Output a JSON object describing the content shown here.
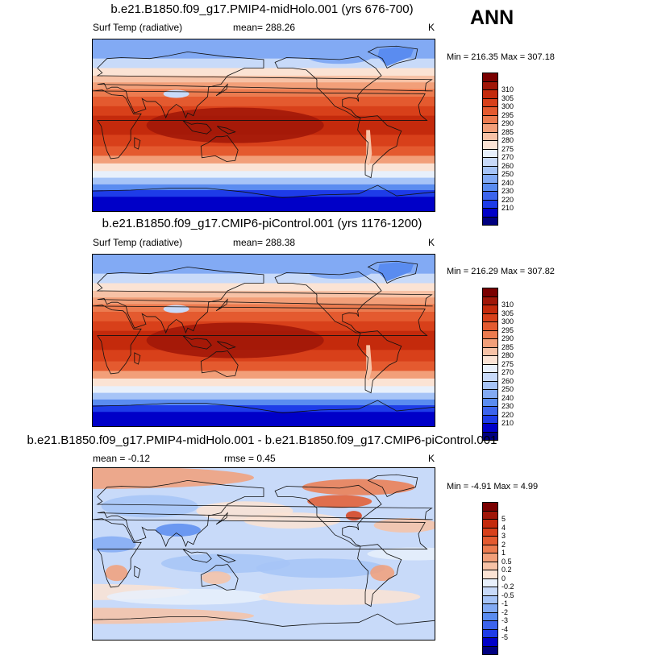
{
  "season": "ANN",
  "panels": [
    {
      "title": "b.e21.B1850.f09_g17.PMIP4-midHolo.001 (yrs 676-700)",
      "left_label": "Surf Temp (radiative)",
      "center_label": "mean= 288.26",
      "units": "K",
      "minmax": "Min = 216.35 Max = 307.18",
      "type": "abs",
      "colors": [
        "#000080",
        "#0000c8",
        "#1e3ce8",
        "#3c64ec",
        "#5a8cf0",
        "#82aaf4",
        "#a6c4f7",
        "#c8daf9",
        "#e8f0fb",
        "#fbe3d4",
        "#f7c2a6",
        "#f29f79",
        "#ec7b4f",
        "#e45a2f",
        "#d8401a",
        "#c42a0c",
        "#a01608",
        "#7a0000"
      ],
      "labels": [
        "310",
        "305",
        "300",
        "295",
        "290",
        "285",
        "280",
        "275",
        "270",
        "260",
        "250",
        "240",
        "230",
        "220",
        "210"
      ]
    },
    {
      "title": "b.e21.B1850.f09_g17.CMIP6-piControl.001 (yrs 1176-1200)",
      "left_label": "Surf Temp (radiative)",
      "center_label": "mean= 288.38",
      "units": "K",
      "minmax": "Min = 216.29 Max = 307.82",
      "type": "abs",
      "colors": [
        "#000080",
        "#0000c8",
        "#1e3ce8",
        "#3c64ec",
        "#5a8cf0",
        "#82aaf4",
        "#a6c4f7",
        "#c8daf9",
        "#e8f0fb",
        "#fbe3d4",
        "#f7c2a6",
        "#f29f79",
        "#ec7b4f",
        "#e45a2f",
        "#d8401a",
        "#c42a0c",
        "#a01608",
        "#7a0000"
      ],
      "labels": [
        "310",
        "305",
        "300",
        "295",
        "290",
        "285",
        "280",
        "275",
        "270",
        "260",
        "250",
        "240",
        "230",
        "220",
        "210"
      ]
    },
    {
      "title": "b.e21.B1850.f09_g17.PMIP4-midHolo.001 - b.e21.B1850.f09_g17.CMIP6-piControl.001",
      "left_label": "mean =  -0.12",
      "center_label": "rmse =  0.45",
      "units": "K",
      "minmax": "Min =  -4.91 Max =  4.99",
      "type": "diff",
      "colors": [
        "#000080",
        "#0000c8",
        "#1e3ce8",
        "#3c64ec",
        "#5a8cf0",
        "#82aaf4",
        "#a6c4f7",
        "#c8daf9",
        "#e8f0fb",
        "#fbe3d4",
        "#f7c2a6",
        "#f29f79",
        "#ec7b4f",
        "#e45a2f",
        "#d8401a",
        "#c42a0c",
        "#a01608",
        "#7a0000"
      ],
      "labels": [
        "5",
        "4",
        "3",
        "2",
        "1",
        "0.5",
        "0.2",
        "0",
        "-0.2",
        "-0.5",
        "-1",
        "-2",
        "-3",
        "-4",
        "-5"
      ]
    }
  ]
}
